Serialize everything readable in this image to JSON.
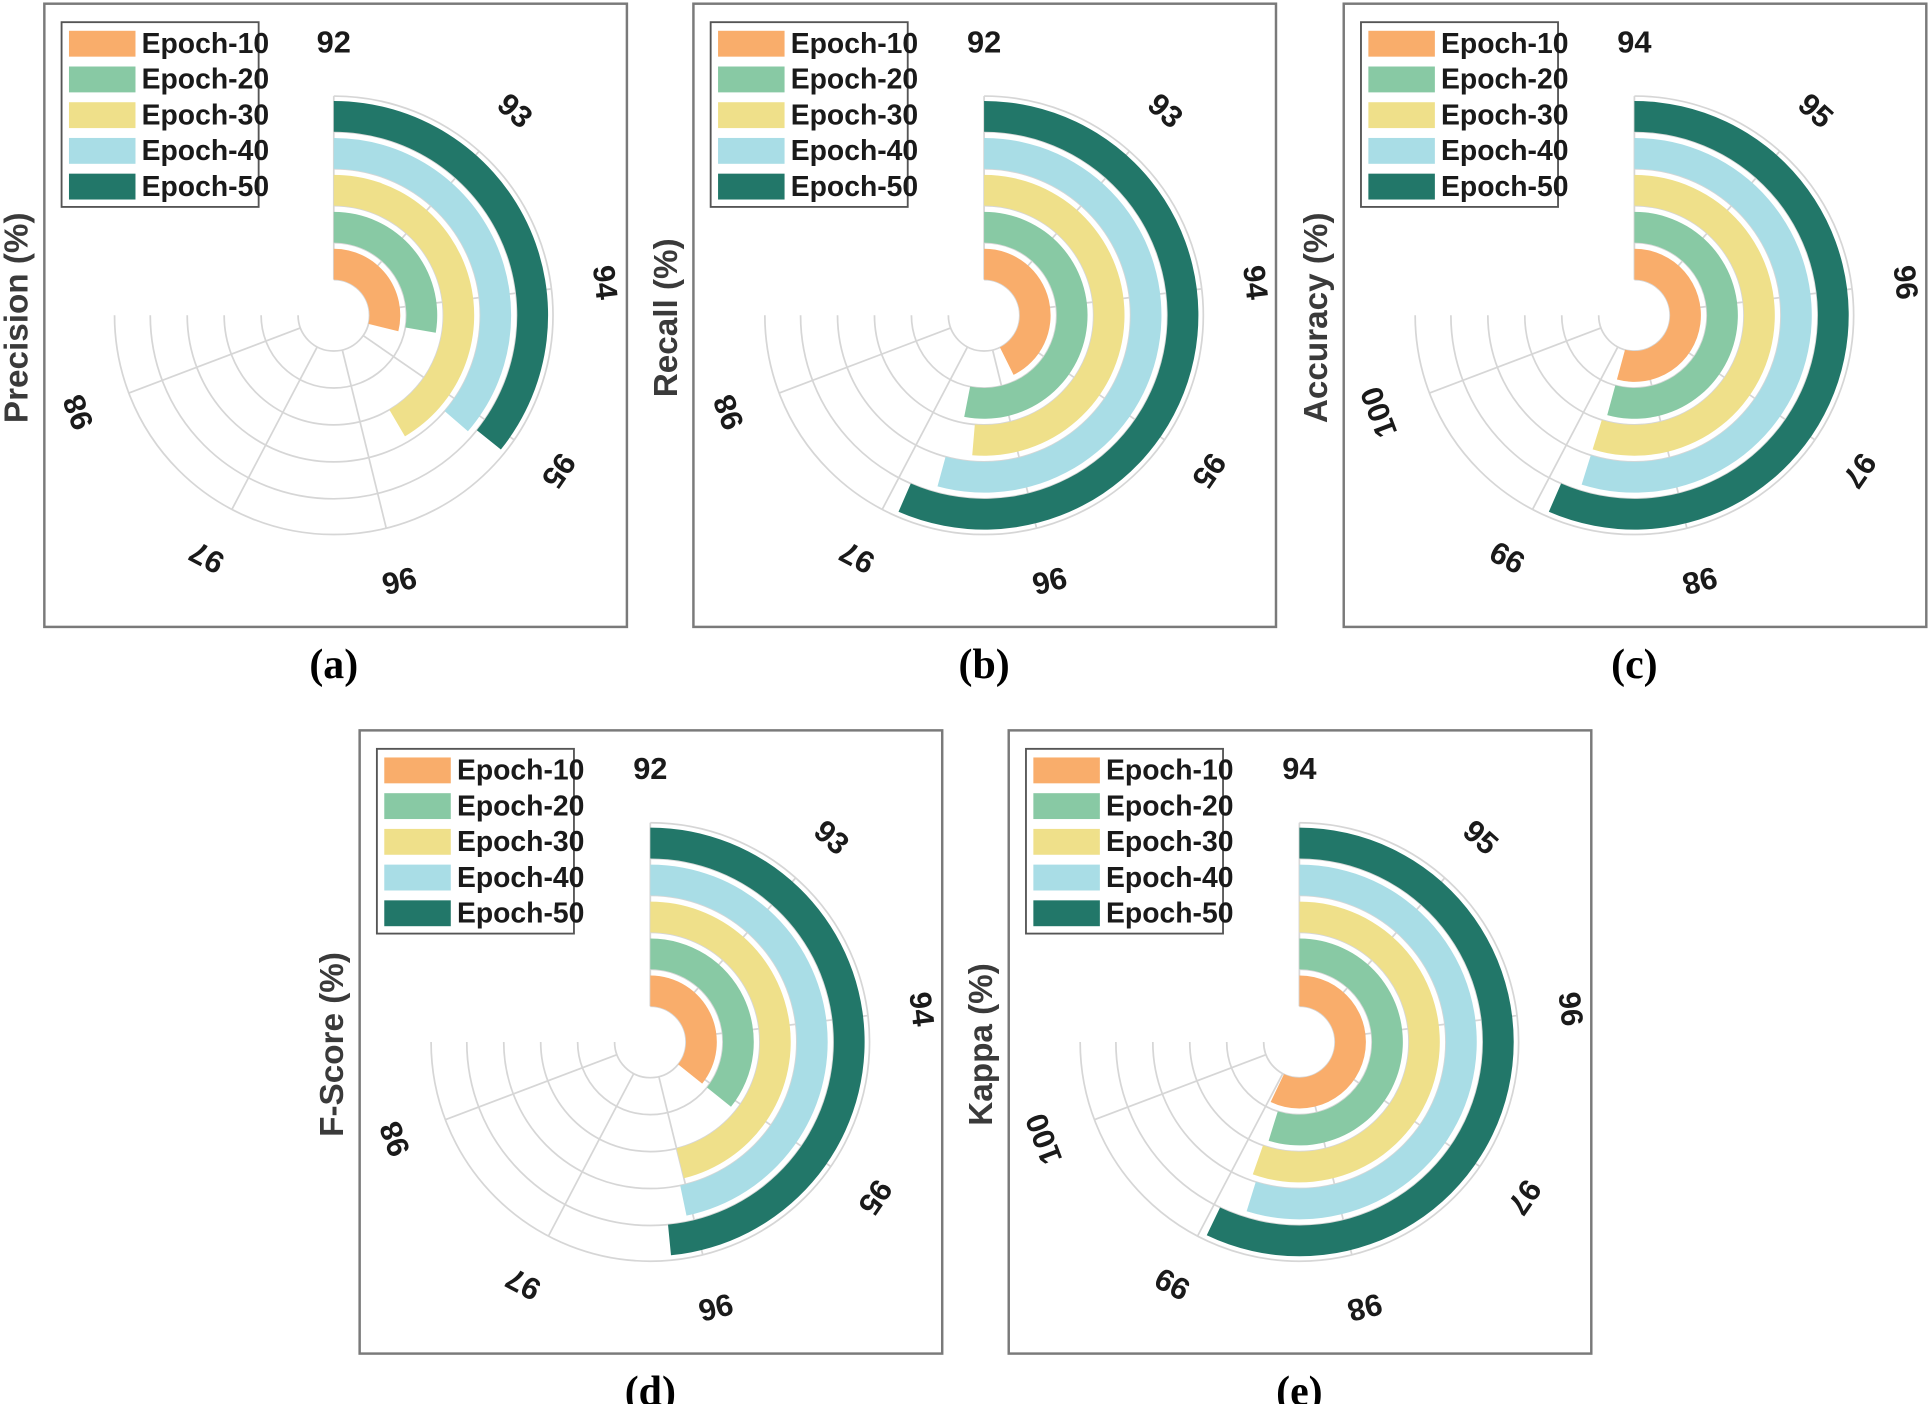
{
  "legend": [
    "Epoch-10",
    "Epoch-20",
    "Epoch-30",
    "Epoch-40",
    "Epoch-50"
  ],
  "colors": {
    "Epoch-10": "#f9ad6b",
    "Epoch-20": "#88c9a4",
    "Epoch-30": "#efe08a",
    "Epoch-40": "#a9dde6",
    "Epoch-50": "#227769"
  },
  "chart_data": [
    {
      "type": "radial-bar",
      "panel": "(a)",
      "ylabel": "Precision (%)",
      "axis_ticks": [
        "92",
        "93",
        "94",
        "95",
        "96",
        "97",
        "98"
      ],
      "range": [
        92,
        98.5
      ],
      "series": [
        {
          "name": "Epoch-10",
          "value": 94.5
        },
        {
          "name": "Epoch-20",
          "value": 94.4
        },
        {
          "name": "Epoch-30",
          "value": 95.6
        },
        {
          "name": "Epoch-40",
          "value": 95.15
        },
        {
          "name": "Epoch-50",
          "value": 95.1
        }
      ]
    },
    {
      "type": "radial-bar",
      "panel": "(b)",
      "ylabel": "Recall (%)",
      "axis_ticks": [
        "92",
        "93",
        "94",
        "95",
        "96",
        "97",
        "98"
      ],
      "range": [
        92,
        98.5
      ],
      "series": [
        {
          "name": "Epoch-10",
          "value": 95.7
        },
        {
          "name": "Epoch-20",
          "value": 96.6
        },
        {
          "name": "Epoch-30",
          "value": 96.45
        },
        {
          "name": "Epoch-40",
          "value": 96.7
        },
        {
          "name": "Epoch-50",
          "value": 96.9
        }
      ]
    },
    {
      "type": "radial-bar",
      "panel": "(c)",
      "ylabel": "Accuracy (%)",
      "axis_ticks": [
        "94",
        "95",
        "96",
        "97",
        "98",
        "99",
        "100"
      ],
      "range": [
        94,
        100.5
      ],
      "series": [
        {
          "name": "Epoch-10",
          "value": 98.7
        },
        {
          "name": "Epoch-20",
          "value": 98.7
        },
        {
          "name": "Epoch-30",
          "value": 98.75
        },
        {
          "name": "Epoch-40",
          "value": 98.75
        },
        {
          "name": "Epoch-50",
          "value": 98.9
        }
      ]
    },
    {
      "type": "radial-bar",
      "panel": "(d)",
      "ylabel": "F-Score (%)",
      "axis_ticks": [
        "92",
        "93",
        "94",
        "95",
        "96",
        "97",
        "98"
      ],
      "range": [
        92,
        98.5
      ],
      "series": [
        {
          "name": "Epoch-10",
          "value": 95.1
        },
        {
          "name": "Epoch-20",
          "value": 95.1
        },
        {
          "name": "Epoch-30",
          "value": 96.0
        },
        {
          "name": "Epoch-40",
          "value": 96.05
        },
        {
          "name": "Epoch-50",
          "value": 96.2
        }
      ]
    },
    {
      "type": "radial-bar",
      "panel": "(e)",
      "ylabel": "Kappa (%)",
      "axis_ticks": [
        "94",
        "95",
        "96",
        "97",
        "98",
        "99",
        "100"
      ],
      "range": [
        94,
        100.5
      ],
      "series": [
        {
          "name": "Epoch-10",
          "value": 98.95
        },
        {
          "name": "Epoch-20",
          "value": 98.75
        },
        {
          "name": "Epoch-30",
          "value": 98.8
        },
        {
          "name": "Epoch-40",
          "value": 98.75
        },
        {
          "name": "Epoch-50",
          "value": 98.95
        }
      ]
    }
  ]
}
